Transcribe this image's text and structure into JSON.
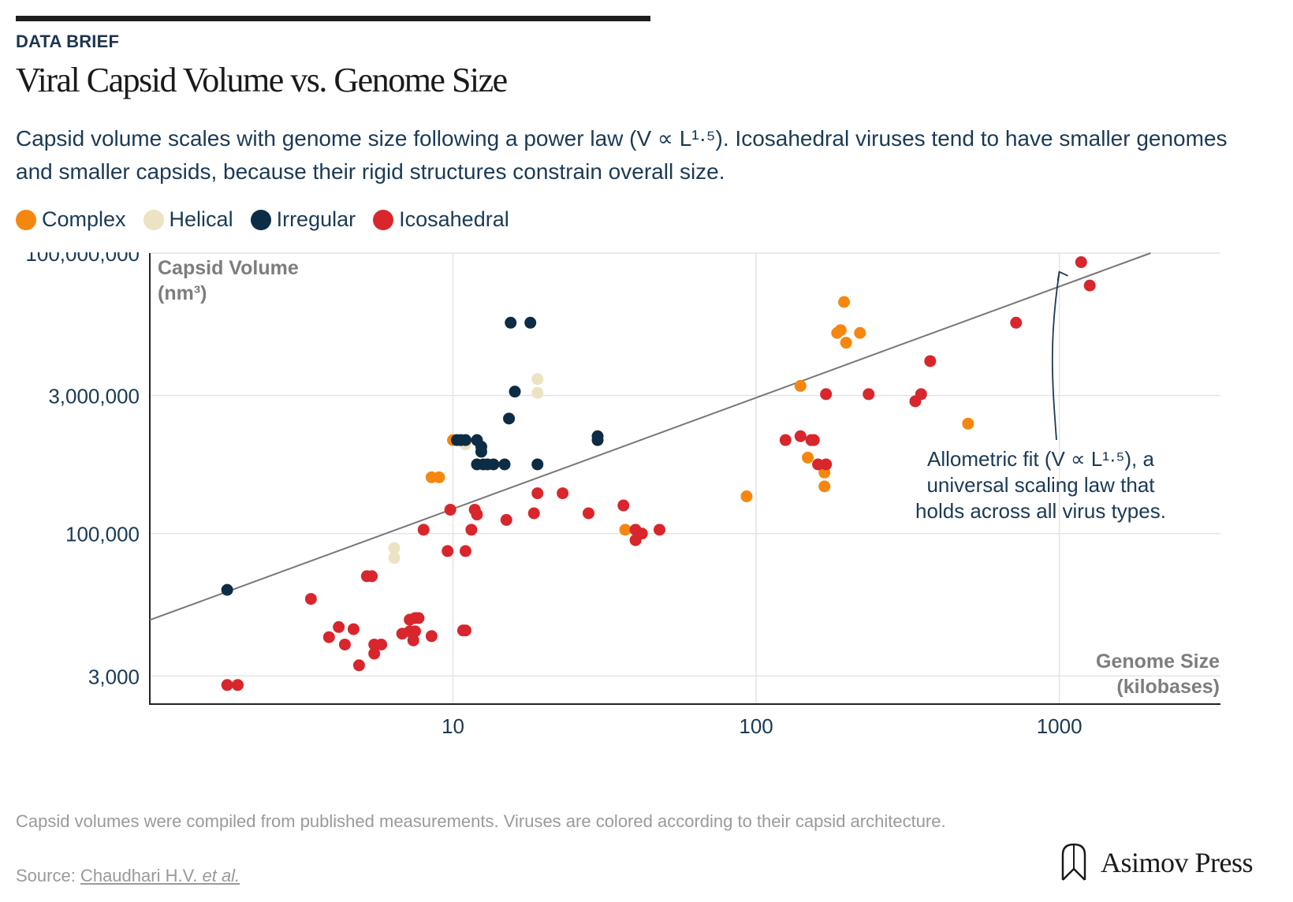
{
  "header": {
    "kicker": "DATA BRIEF",
    "title": "Viral Capsid Volume vs. Genome Size",
    "subtitle": "Capsid volume scales with genome size following a power law (V ∝ L¹·⁵). Icosahedral viruses tend to have smaller genomes and smaller capsids, because their rigid structures constrain overall size."
  },
  "legend": [
    {
      "label": "Complex",
      "color": "#f5870f"
    },
    {
      "label": "Helical",
      "color": "#ebe3c2"
    },
    {
      "label": "Irregular",
      "color": "#0d2c45"
    },
    {
      "label": "Icosahedral",
      "color": "#d8262c"
    }
  ],
  "chart_data": {
    "type": "scatter",
    "x_scale": "log",
    "y_scale": "log",
    "xlabel": [
      "Genome Size",
      "(kilobases)"
    ],
    "ylabel": [
      "Capsid Volume",
      "(nm³)"
    ],
    "xlim": [
      1,
      3400
    ],
    "ylim": [
      1500,
      100000000
    ],
    "x_ticks": [
      {
        "value": 10,
        "label": "10"
      },
      {
        "value": 100,
        "label": "100"
      },
      {
        "value": 1000,
        "label": "1000"
      }
    ],
    "y_ticks": [
      {
        "value": 3000,
        "label": "3,000"
      },
      {
        "value": 100000,
        "label": "100,000"
      },
      {
        "value": 3000000,
        "label": "3,000,000"
      },
      {
        "value": 100000000,
        "label": "100,000,000"
      }
    ],
    "fit": {
      "label": "Allometric fit (V ∝ L¹·⁵)",
      "exponent": 1.5,
      "points": [
        [
          1,
          11900
        ],
        [
          2000,
          100000000
        ]
      ]
    },
    "annotation": {
      "lines": [
        "Allometric fit (V ∝ L¹·⁵), a",
        "universal scaling law that",
        "holds across all virus types."
      ],
      "arrow_to": [
        1000,
        63000000
      ]
    },
    "series": [
      {
        "name": "Complex",
        "color": "#f5870f",
        "points": [
          [
            10,
            1000000
          ],
          [
            8.5,
            400000
          ],
          [
            9,
            400000
          ],
          [
            37,
            110000
          ],
          [
            93,
            250000
          ],
          [
            140,
            3800000
          ],
          [
            148,
            650000
          ],
          [
            168,
            320000
          ],
          [
            168,
            450000
          ],
          [
            185,
            14000000
          ],
          [
            190,
            15000000
          ],
          [
            195,
            30000000
          ],
          [
            198,
            11000000
          ],
          [
            220,
            14000000
          ],
          [
            500,
            1500000
          ]
        ]
      },
      {
        "name": "Helical",
        "color": "#ebe3c2",
        "points": [
          [
            6.4,
            70000
          ],
          [
            6.4,
            55000
          ],
          [
            11,
            900000
          ],
          [
            19,
            3200000
          ],
          [
            19,
            4500000
          ]
        ]
      },
      {
        "name": "Irregular",
        "color": "#0d2c45",
        "points": [
          [
            1.8,
            25000
          ],
          [
            10.3,
            1000000
          ],
          [
            10.6,
            1000000
          ],
          [
            11,
            1000000
          ],
          [
            12,
            1000000
          ],
          [
            12.4,
            850000
          ],
          [
            12.4,
            750000
          ],
          [
            12,
            550000
          ],
          [
            12.6,
            550000
          ],
          [
            13,
            550000
          ],
          [
            13.6,
            550000
          ],
          [
            14.8,
            550000
          ],
          [
            15.3,
            1700000
          ],
          [
            15.5,
            18000000
          ],
          [
            16,
            3300000
          ],
          [
            18,
            18000000
          ],
          [
            19,
            550000
          ],
          [
            30,
            1100000
          ],
          [
            30,
            1000000
          ]
        ]
      },
      {
        "name": "Icosahedral",
        "color": "#d8262c",
        "points": [
          [
            1.8,
            2400
          ],
          [
            1.95,
            2400
          ],
          [
            3.4,
            20000
          ],
          [
            3.9,
            7800
          ],
          [
            4.2,
            10000
          ],
          [
            4.4,
            6500
          ],
          [
            4.7,
            9500
          ],
          [
            4.9,
            3900
          ],
          [
            5.2,
            35000
          ],
          [
            5.4,
            35000
          ],
          [
            5.5,
            6500
          ],
          [
            5.5,
            5200
          ],
          [
            5.8,
            6500
          ],
          [
            6.8,
            8500
          ],
          [
            7.2,
            12000
          ],
          [
            7.2,
            9000
          ],
          [
            7.4,
            7200
          ],
          [
            7.5,
            9000
          ],
          [
            7.5,
            12500
          ],
          [
            7.7,
            12500
          ],
          [
            8,
            110000
          ],
          [
            8.5,
            8000
          ],
          [
            9.6,
            65000
          ],
          [
            9.8,
            180000
          ],
          [
            10.8,
            9200
          ],
          [
            11,
            9200
          ],
          [
            11,
            65000
          ],
          [
            11.5,
            110000
          ],
          [
            11.8,
            180000
          ],
          [
            12,
            160000
          ],
          [
            15,
            140000
          ],
          [
            18.5,
            165000
          ],
          [
            19,
            270000
          ],
          [
            23,
            270000
          ],
          [
            28,
            165000
          ],
          [
            36.5,
            200000
          ],
          [
            40,
            110000
          ],
          [
            40,
            85000
          ],
          [
            42,
            100000
          ],
          [
            48,
            110000
          ],
          [
            125,
            1000000
          ],
          [
            140,
            1100000
          ],
          [
            152,
            1000000
          ],
          [
            155,
            1000000
          ],
          [
            160,
            550000
          ],
          [
            170,
            3100000
          ],
          [
            170,
            550000
          ],
          [
            235,
            3100000
          ],
          [
            335,
            2600000
          ],
          [
            350,
            3100000
          ],
          [
            375,
            7000000
          ],
          [
            720,
            18000000
          ],
          [
            1180,
            80000000
          ],
          [
            1260,
            45000000
          ]
        ]
      }
    ]
  },
  "footnote": "Capsid volumes were compiled from published measurements. Viruses are colored according to their capsid architecture.",
  "source": {
    "prefix": "Source:",
    "link_text": "Chaudhari H.V.",
    "italic": "et al."
  },
  "brand": {
    "name": "Asimov Press"
  }
}
